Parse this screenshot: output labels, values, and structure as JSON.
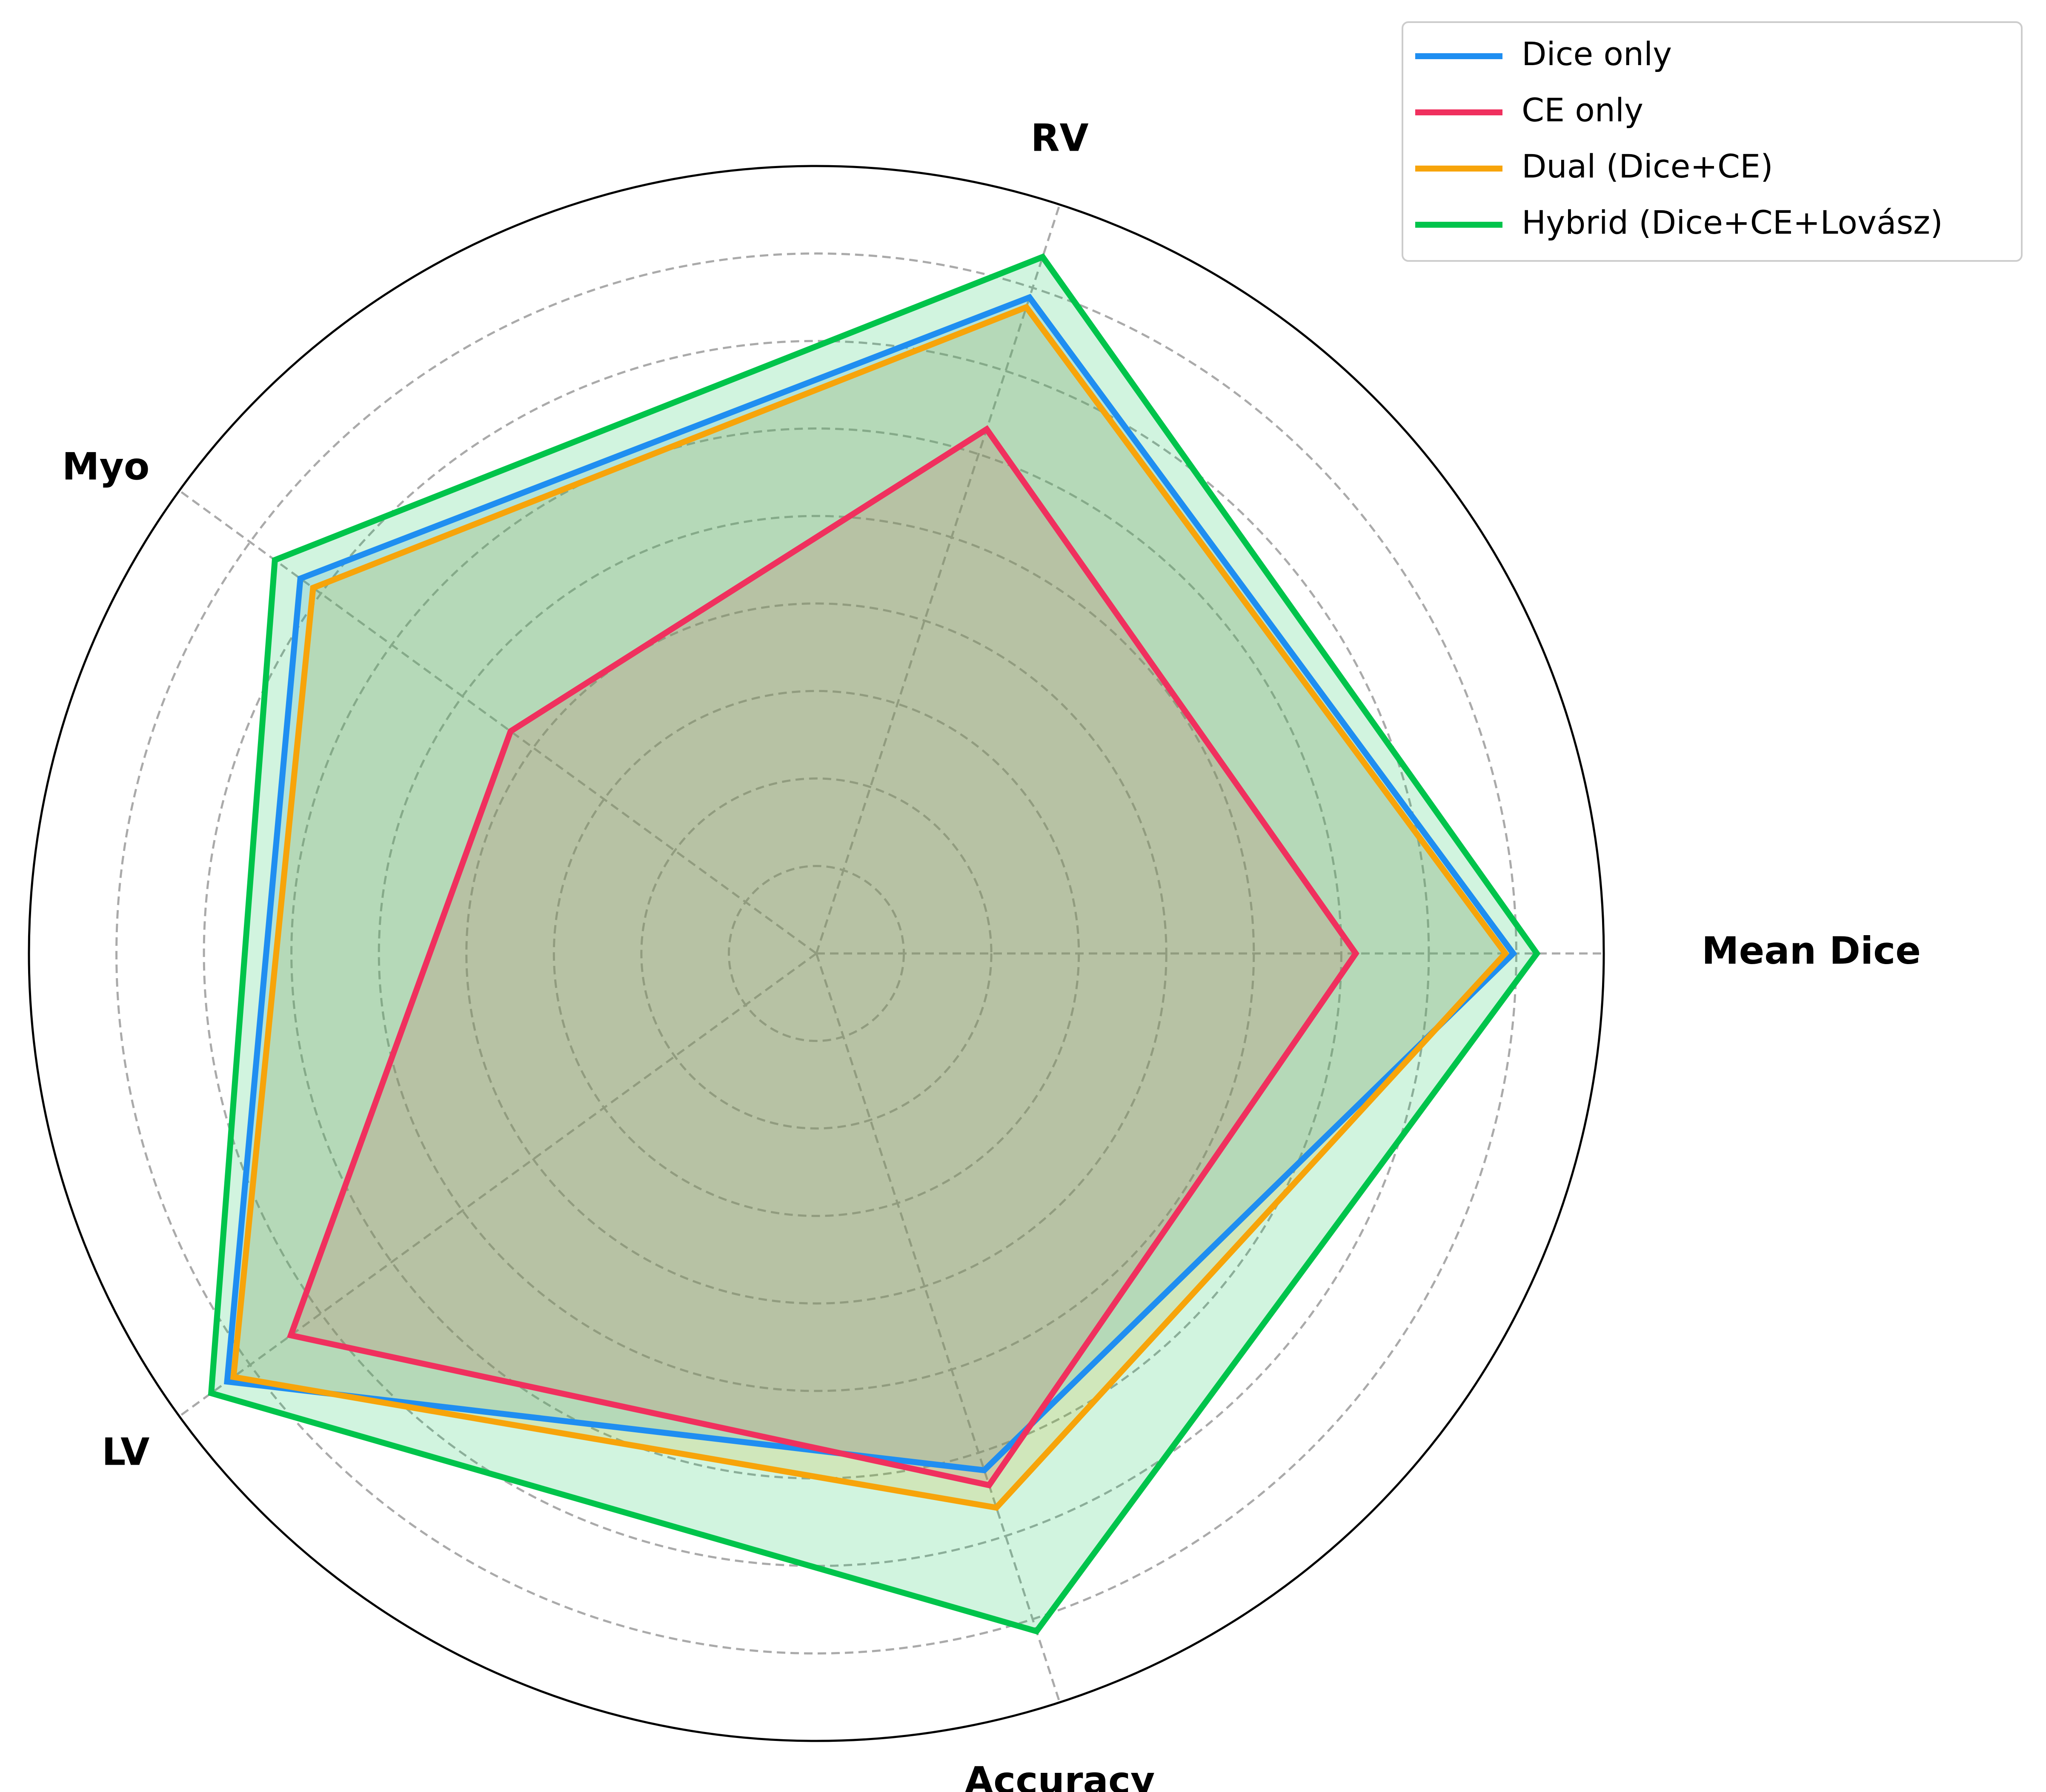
{
  "chart_data": {
    "type": "radar",
    "axes": [
      "Mean Dice",
      "RV",
      "Myo",
      "LV",
      "Accuracy"
    ],
    "rlim": [
      0,
      1
    ],
    "grid": true,
    "grid_style": "dashed",
    "legend_position": "top-right",
    "series": [
      {
        "name": "Dice only",
        "color": "#1f8ef1",
        "values": [
          0.885,
          0.876,
          0.81,
          0.925,
          0.69
        ],
        "fill": "#b7d9f5"
      },
      {
        "name": "CE only",
        "color": "#f0305e",
        "values": [
          0.685,
          0.7,
          0.48,
          0.825,
          0.71
        ],
        "fill": "#f0b2c2"
      },
      {
        "name": "Dual (Dice+CE)",
        "color": "#f7a40a",
        "values": [
          0.875,
          0.863,
          0.79,
          0.915,
          0.74
        ],
        "fill": "#f8d99a"
      },
      {
        "name": "Hybrid (Dice+CE+Lovász)",
        "color": "#00c44b",
        "values": [
          0.915,
          0.93,
          0.85,
          0.95,
          0.905
        ],
        "fill": "#a8eec3"
      }
    ]
  }
}
